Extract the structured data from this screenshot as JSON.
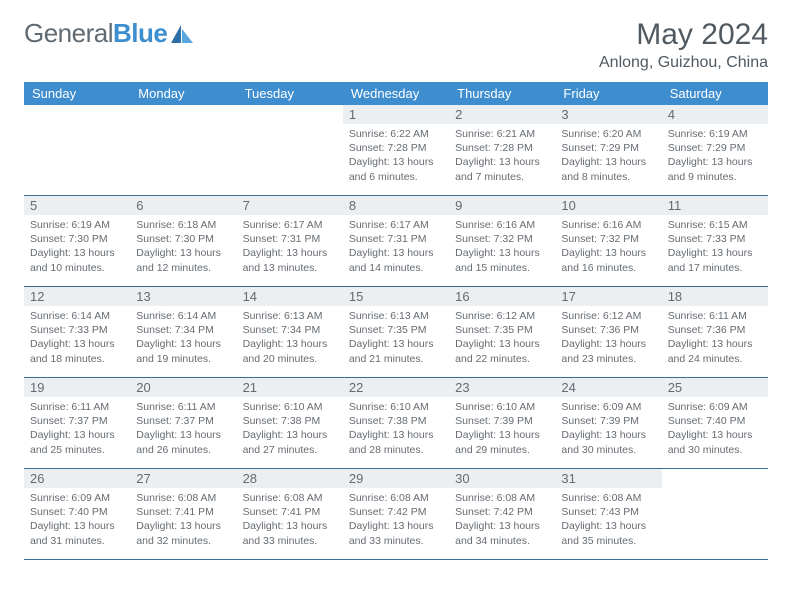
{
  "brand": {
    "part1": "General",
    "part2": "Blue"
  },
  "title": "May 2024",
  "location": "Anlong, Guizhou, China",
  "dow": [
    "Sunday",
    "Monday",
    "Tuesday",
    "Wednesday",
    "Thursday",
    "Friday",
    "Saturday"
  ],
  "colors": {
    "header_bg": "#3e8ecf",
    "header_fg": "#ffffff",
    "daynum_bg": "#eceff1",
    "rule": "#3d6d94",
    "text": "#666c72",
    "title": "#505a62"
  },
  "weeks": [
    [
      {
        "n": "",
        "empty": true
      },
      {
        "n": "",
        "empty": true
      },
      {
        "n": "",
        "empty": true
      },
      {
        "n": "1",
        "sr": "6:22 AM",
        "ss": "7:28 PM",
        "dl": "13 hours and 6 minutes."
      },
      {
        "n": "2",
        "sr": "6:21 AM",
        "ss": "7:28 PM",
        "dl": "13 hours and 7 minutes."
      },
      {
        "n": "3",
        "sr": "6:20 AM",
        "ss": "7:29 PM",
        "dl": "13 hours and 8 minutes."
      },
      {
        "n": "4",
        "sr": "6:19 AM",
        "ss": "7:29 PM",
        "dl": "13 hours and 9 minutes."
      }
    ],
    [
      {
        "n": "5",
        "sr": "6:19 AM",
        "ss": "7:30 PM",
        "dl": "13 hours and 10 minutes."
      },
      {
        "n": "6",
        "sr": "6:18 AM",
        "ss": "7:30 PM",
        "dl": "13 hours and 12 minutes."
      },
      {
        "n": "7",
        "sr": "6:17 AM",
        "ss": "7:31 PM",
        "dl": "13 hours and 13 minutes."
      },
      {
        "n": "8",
        "sr": "6:17 AM",
        "ss": "7:31 PM",
        "dl": "13 hours and 14 minutes."
      },
      {
        "n": "9",
        "sr": "6:16 AM",
        "ss": "7:32 PM",
        "dl": "13 hours and 15 minutes."
      },
      {
        "n": "10",
        "sr": "6:16 AM",
        "ss": "7:32 PM",
        "dl": "13 hours and 16 minutes."
      },
      {
        "n": "11",
        "sr": "6:15 AM",
        "ss": "7:33 PM",
        "dl": "13 hours and 17 minutes."
      }
    ],
    [
      {
        "n": "12",
        "sr": "6:14 AM",
        "ss": "7:33 PM",
        "dl": "13 hours and 18 minutes."
      },
      {
        "n": "13",
        "sr": "6:14 AM",
        "ss": "7:34 PM",
        "dl": "13 hours and 19 minutes."
      },
      {
        "n": "14",
        "sr": "6:13 AM",
        "ss": "7:34 PM",
        "dl": "13 hours and 20 minutes."
      },
      {
        "n": "15",
        "sr": "6:13 AM",
        "ss": "7:35 PM",
        "dl": "13 hours and 21 minutes."
      },
      {
        "n": "16",
        "sr": "6:12 AM",
        "ss": "7:35 PM",
        "dl": "13 hours and 22 minutes."
      },
      {
        "n": "17",
        "sr": "6:12 AM",
        "ss": "7:36 PM",
        "dl": "13 hours and 23 minutes."
      },
      {
        "n": "18",
        "sr": "6:11 AM",
        "ss": "7:36 PM",
        "dl": "13 hours and 24 minutes."
      }
    ],
    [
      {
        "n": "19",
        "sr": "6:11 AM",
        "ss": "7:37 PM",
        "dl": "13 hours and 25 minutes."
      },
      {
        "n": "20",
        "sr": "6:11 AM",
        "ss": "7:37 PM",
        "dl": "13 hours and 26 minutes."
      },
      {
        "n": "21",
        "sr": "6:10 AM",
        "ss": "7:38 PM",
        "dl": "13 hours and 27 minutes."
      },
      {
        "n": "22",
        "sr": "6:10 AM",
        "ss": "7:38 PM",
        "dl": "13 hours and 28 minutes."
      },
      {
        "n": "23",
        "sr": "6:10 AM",
        "ss": "7:39 PM",
        "dl": "13 hours and 29 minutes."
      },
      {
        "n": "24",
        "sr": "6:09 AM",
        "ss": "7:39 PM",
        "dl": "13 hours and 30 minutes."
      },
      {
        "n": "25",
        "sr": "6:09 AM",
        "ss": "7:40 PM",
        "dl": "13 hours and 30 minutes."
      }
    ],
    [
      {
        "n": "26",
        "sr": "6:09 AM",
        "ss": "7:40 PM",
        "dl": "13 hours and 31 minutes."
      },
      {
        "n": "27",
        "sr": "6:08 AM",
        "ss": "7:41 PM",
        "dl": "13 hours and 32 minutes."
      },
      {
        "n": "28",
        "sr": "6:08 AM",
        "ss": "7:41 PM",
        "dl": "13 hours and 33 minutes."
      },
      {
        "n": "29",
        "sr": "6:08 AM",
        "ss": "7:42 PM",
        "dl": "13 hours and 33 minutes."
      },
      {
        "n": "30",
        "sr": "6:08 AM",
        "ss": "7:42 PM",
        "dl": "13 hours and 34 minutes."
      },
      {
        "n": "31",
        "sr": "6:08 AM",
        "ss": "7:43 PM",
        "dl": "13 hours and 35 minutes."
      },
      {
        "n": "",
        "empty": true
      }
    ]
  ],
  "labels": {
    "sunrise": "Sunrise: ",
    "sunset": "Sunset: ",
    "daylight": "Daylight: "
  }
}
